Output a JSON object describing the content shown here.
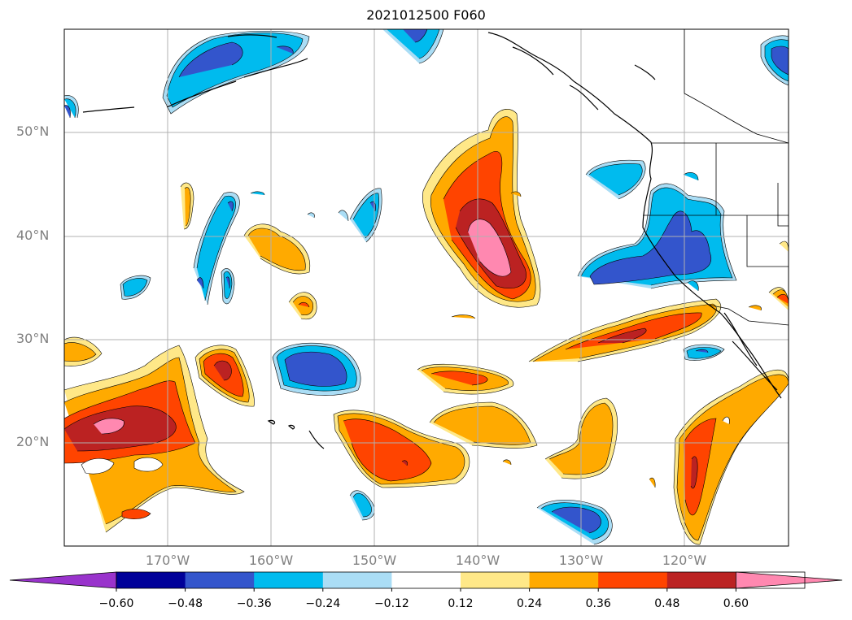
{
  "title": "2021012500 F060",
  "lat_labels": [
    "50°N",
    "40°N",
    "30°N",
    "20°N"
  ],
  "lon_labels": [
    "170°W",
    "160°W",
    "150°W",
    "140°W",
    "130°W",
    "120°W"
  ],
  "colorbar": {
    "colors": [
      "#9933cc",
      "#000099",
      "#3355cc",
      "#00bbee",
      "#aaddf5",
      "#ffffff",
      "#ffe888",
      "#ffaa00",
      "#ff4400",
      "#bb2222",
      "#ff88b0"
    ],
    "tick_labels": [
      "−0.60",
      "−0.48",
      "−0.36",
      "−0.24",
      "−0.12",
      "0.12",
      "0.24",
      "0.36",
      "0.48",
      "0.60"
    ]
  },
  "colors": {
    "gridline": "#b0b0b0",
    "coastline": "#000000"
  }
}
